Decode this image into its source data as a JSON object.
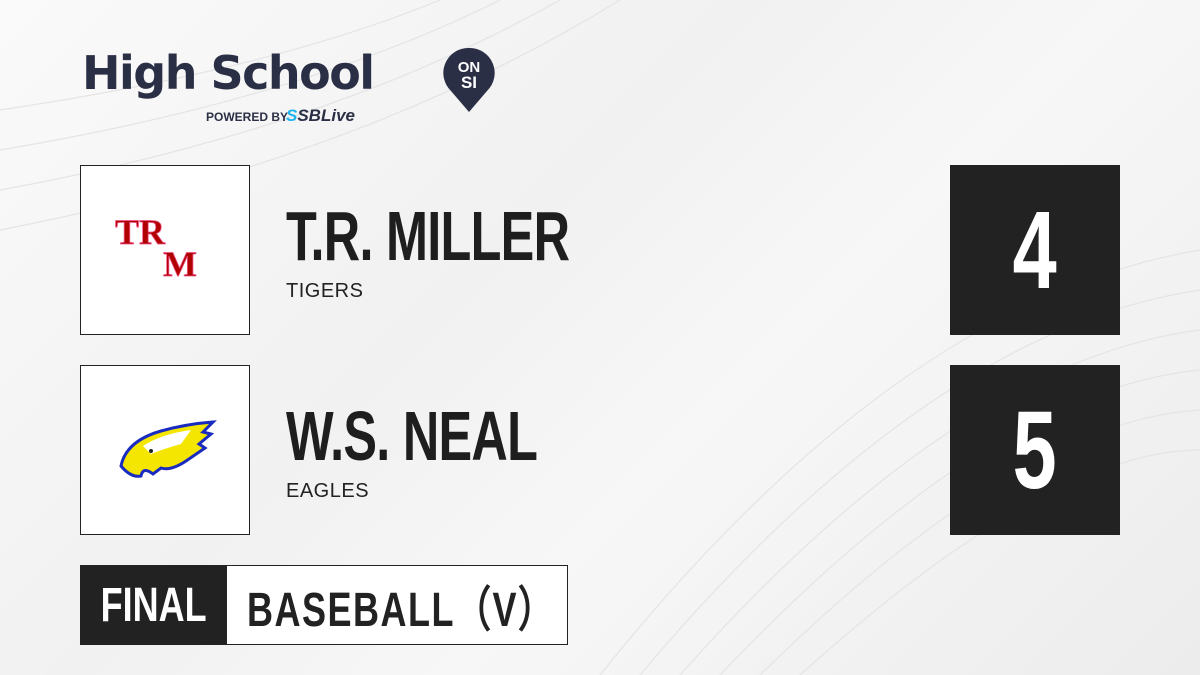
{
  "brand": {
    "title": "High School",
    "badge_top": "ON",
    "badge_bottom": "SI",
    "powered_by": "POWERED BY",
    "partner": "SBLive",
    "colors": {
      "navy": "#2b2f45",
      "partner_blue": "#1eb4f0"
    }
  },
  "teams": [
    {
      "name": "T.R. MILLER",
      "mascot": "TIGERS",
      "score": "4",
      "logo": "TRM",
      "logo_color": "#b00000"
    },
    {
      "name": "W.S. NEAL",
      "mascot": "EAGLES",
      "score": "5",
      "logo": "eagle-head"
    }
  ],
  "game": {
    "status": "FINAL",
    "sport": "BASEBALL（V）"
  }
}
